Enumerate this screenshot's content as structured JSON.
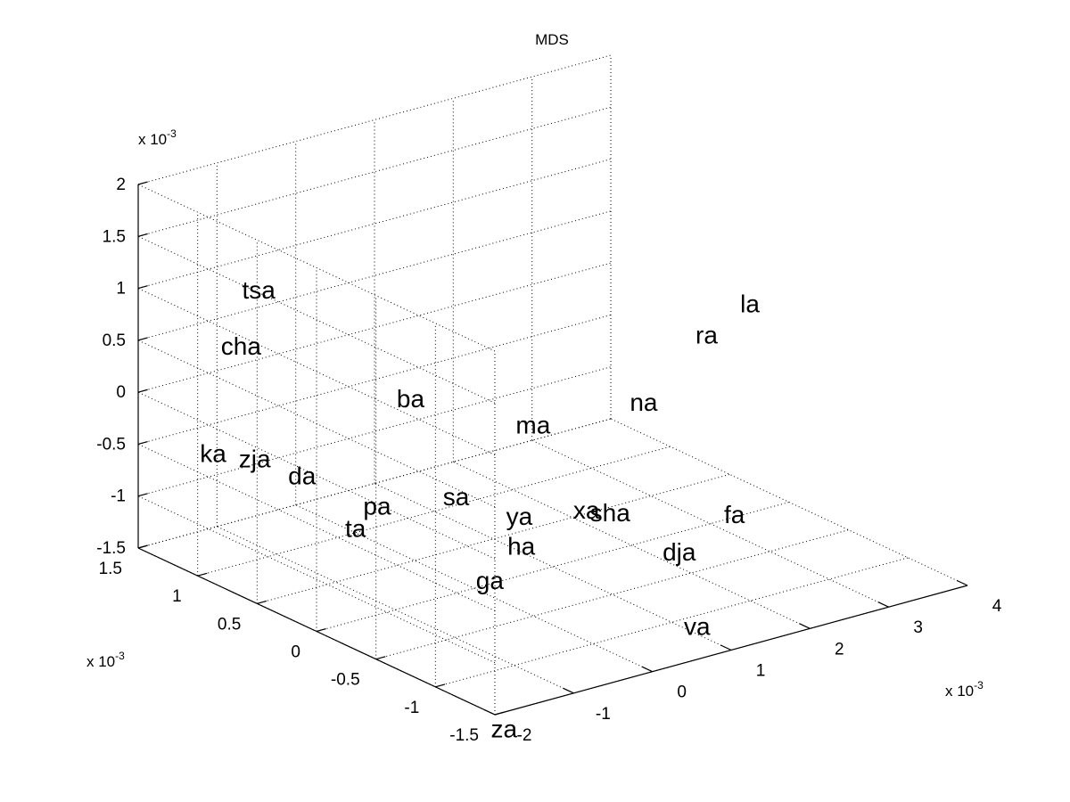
{
  "chart_data": {
    "type": "scatter",
    "subtype": "3d-text-scatter",
    "title": "MDS",
    "grid": true,
    "axes": {
      "x": {
        "range": [
          -2,
          4
        ],
        "ticks": [
          -2,
          -1,
          0,
          1,
          2,
          3,
          4
        ],
        "tick_labels": [
          "-2",
          "-1",
          "0",
          "1",
          "2",
          "3",
          "4"
        ],
        "exponent_label": "x 10",
        "exponent_power": "-3"
      },
      "y": {
        "range": [
          -1.5,
          1.5
        ],
        "ticks": [
          -1.5,
          -1,
          -0.5,
          0,
          0.5,
          1,
          1.5
        ],
        "tick_labels": [
          "-1.5",
          "-1",
          "-0.5",
          "0",
          "0.5",
          "1",
          "1.5"
        ],
        "exponent_label": "x 10",
        "exponent_power": "-3"
      },
      "z": {
        "range": [
          -1.5,
          2
        ],
        "ticks": [
          -1.5,
          -1,
          -0.5,
          0,
          0.5,
          1,
          1.5,
          2
        ],
        "tick_labels": [
          "-1.5",
          "-1",
          "-0.5",
          "0",
          "0.5",
          "1",
          "1.5",
          "2"
        ],
        "exponent_label": "x 10",
        "exponent_power": "-3"
      }
    },
    "points": [
      {
        "label": "tsa",
        "x": -1.3,
        "y": 0.95,
        "z": 1.05
      },
      {
        "label": "cha",
        "x": -1.6,
        "y": 0.9,
        "z": 0.6
      },
      {
        "label": "la",
        "x": 3.2,
        "y": -0.2,
        "z": 0.6
      },
      {
        "label": "ra",
        "x": 2.5,
        "y": -0.3,
        "z": 0.5
      },
      {
        "label": "na",
        "x": 1.55,
        "y": -0.4,
        "z": 0.1
      },
      {
        "label": "ba",
        "x": 0.1,
        "y": 0.6,
        "z": -0.1
      },
      {
        "label": "ma",
        "x": 0.9,
        "y": 0.1,
        "z": -0.25
      },
      {
        "label": "ka",
        "x": -1.35,
        "y": 1.3,
        "z": -0.7
      },
      {
        "label": "zja",
        "x": -1.2,
        "y": 1.05,
        "z": -0.65
      },
      {
        "label": "da",
        "x": -0.75,
        "y": 0.95,
        "z": -0.85
      },
      {
        "label": "pa",
        "x": -0.4,
        "y": 0.55,
        "z": -1.0
      },
      {
        "label": "ta",
        "x": -0.6,
        "y": 0.6,
        "z": -1.2
      },
      {
        "label": "sa",
        "x": 0.3,
        "y": 0.35,
        "z": -0.95
      },
      {
        "label": "ya",
        "x": 0.65,
        "y": 0.05,
        "z": -1.05
      },
      {
        "label": "ha",
        "x": 0.6,
        "y": 0.0,
        "z": -1.3
      },
      {
        "label": "xa",
        "x": 1.2,
        "y": -0.15,
        "z": -1.0
      },
      {
        "label": "sha",
        "x": 1.35,
        "y": -0.25,
        "z": -1.0
      },
      {
        "label": "fa",
        "x": 2.4,
        "y": -0.6,
        "z": -1.05
      },
      {
        "label": "dja",
        "x": 1.85,
        "y": -0.5,
        "z": -1.35
      },
      {
        "label": "ga",
        "x": 0.2,
        "y": 0.0,
        "z": -1.55
      },
      {
        "label": "va",
        "x": 1.7,
        "y": -0.75,
        "z": -1.9
      },
      {
        "label": "za",
        "x": -0.45,
        "y": -0.55,
        "z": -2.55
      }
    ]
  }
}
